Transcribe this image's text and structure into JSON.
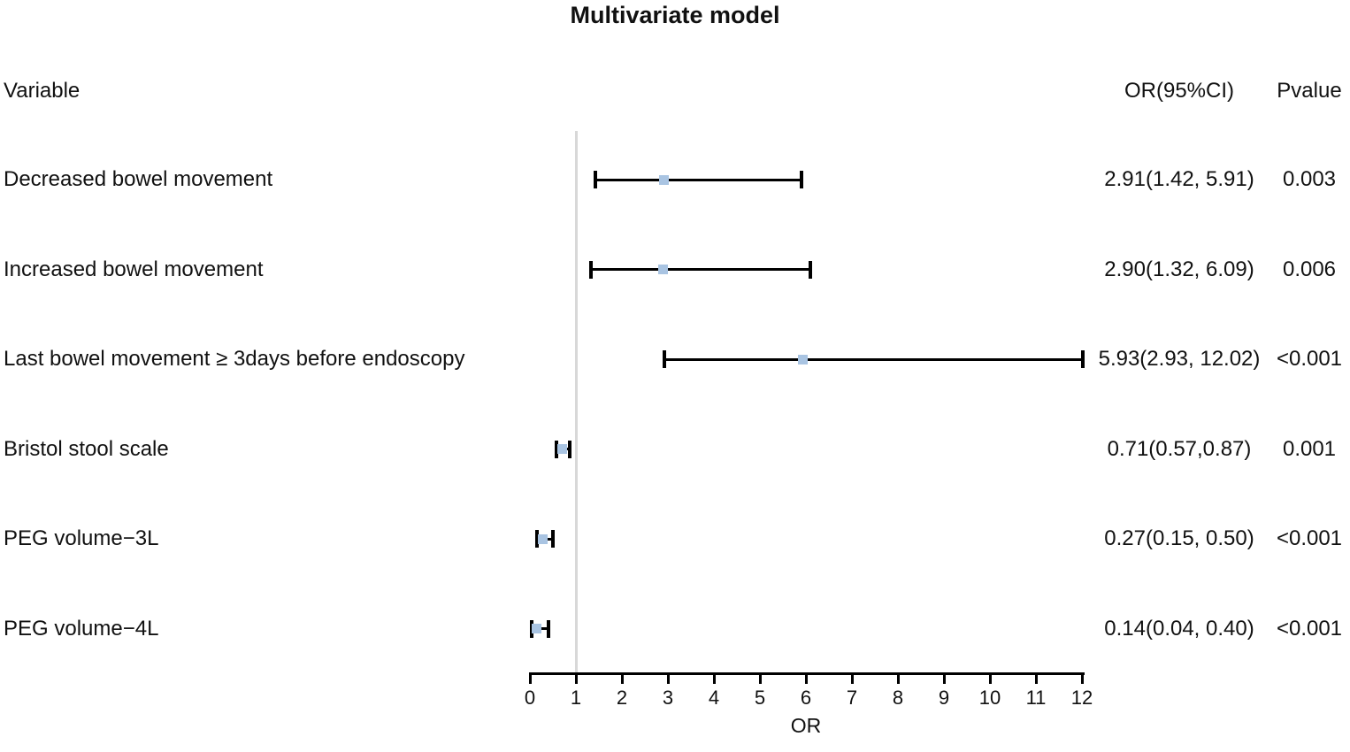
{
  "figure": {
    "title": "Multivariate model"
  },
  "columns": {
    "variable": "Variable",
    "or_ci": "OR(95%CI)",
    "pvalue": "Pvalue"
  },
  "colors": {
    "marker": "#a9c4e2",
    "error_bar": "#000000",
    "reference_line": "#d8d8d8",
    "axis": "#000000",
    "text": "#111111"
  },
  "chart_data": {
    "type": "forest_plot",
    "title": "Multivariate model",
    "xlabel": "OR",
    "xlim": [
      0,
      12
    ],
    "x_ticks": [
      0,
      1,
      2,
      3,
      4,
      5,
      6,
      7,
      8,
      9,
      10,
      11,
      12
    ],
    "reference_line_x": 1,
    "rows": [
      {
        "variable": "Decreased bowel movement",
        "or": 2.91,
        "ci_low": 1.42,
        "ci_high": 5.91,
        "or_ci_label": "2.91(1.42, 5.91)",
        "pvalue": "0.003"
      },
      {
        "variable": "Increased bowel movement",
        "or": 2.9,
        "ci_low": 1.32,
        "ci_high": 6.09,
        "or_ci_label": "2.90(1.32, 6.09)",
        "pvalue": "0.006"
      },
      {
        "variable": "Last bowel movement ≥ 3days before endoscopy",
        "or": 5.93,
        "ci_low": 2.93,
        "ci_high": 12.02,
        "or_ci_label": "5.93(2.93, 12.02)",
        "pvalue": "<0.001"
      },
      {
        "variable": "Bristol stool scale",
        "or": 0.71,
        "ci_low": 0.57,
        "ci_high": 0.87,
        "or_ci_label": "0.71(0.57,0.87)",
        "pvalue": "0.001"
      },
      {
        "variable": "PEG volume−3L",
        "or": 0.27,
        "ci_low": 0.15,
        "ci_high": 0.5,
        "or_ci_label": "0.27(0.15, 0.50)",
        "pvalue": "<0.001"
      },
      {
        "variable": "PEG volume−4L",
        "or": 0.14,
        "ci_low": 0.04,
        "ci_high": 0.4,
        "or_ci_label": "0.14(0.04, 0.40)",
        "pvalue": "<0.001"
      }
    ]
  }
}
